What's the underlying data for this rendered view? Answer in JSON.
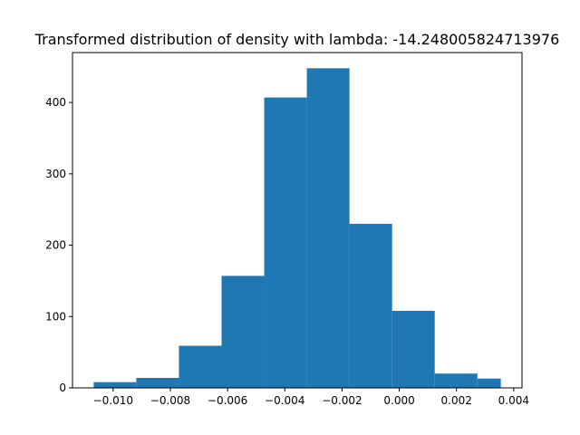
{
  "chart_data": {
    "type": "bar",
    "title": "Transformed distribution of density with lambda: -14.248005824713976",
    "xlabel": "",
    "ylabel": "",
    "xlim": [
      -0.01142,
      0.00429
    ],
    "ylim": [
      0,
      470
    ],
    "grid": false,
    "bins": [
      {
        "start": -0.01068,
        "end": -0.00919,
        "count": 8
      },
      {
        "start": -0.00919,
        "end": -0.0077,
        "count": 14
      },
      {
        "start": -0.0077,
        "end": -0.00621,
        "count": 59
      },
      {
        "start": -0.00621,
        "end": -0.00472,
        "count": 157
      },
      {
        "start": -0.00472,
        "end": -0.00323,
        "count": 407
      },
      {
        "start": -0.00323,
        "end": -0.00174,
        "count": 448
      },
      {
        "start": -0.00174,
        "end": -0.00025,
        "count": 230
      },
      {
        "start": -0.00025,
        "end": 0.00124,
        "count": 108
      },
      {
        "start": 0.00124,
        "end": 0.00273,
        "count": 20
      },
      {
        "start": 0.00273,
        "end": 0.00355,
        "count": 13
      }
    ],
    "xticks": [
      {
        "value": -0.01,
        "label": "−0.010"
      },
      {
        "value": -0.008,
        "label": "−0.008"
      },
      {
        "value": -0.006,
        "label": "−0.006"
      },
      {
        "value": -0.004,
        "label": "−0.004"
      },
      {
        "value": -0.002,
        "label": "−0.002"
      },
      {
        "value": 0.0,
        "label": "0.000"
      },
      {
        "value": 0.002,
        "label": "0.002"
      },
      {
        "value": 0.004,
        "label": "0.004"
      }
    ],
    "yticks": [
      {
        "value": 0,
        "label": "0"
      },
      {
        "value": 100,
        "label": "100"
      },
      {
        "value": 200,
        "label": "200"
      },
      {
        "value": 300,
        "label": "300"
      },
      {
        "value": 400,
        "label": "400"
      }
    ],
    "colors": {
      "bar": "#1f77b4"
    }
  }
}
